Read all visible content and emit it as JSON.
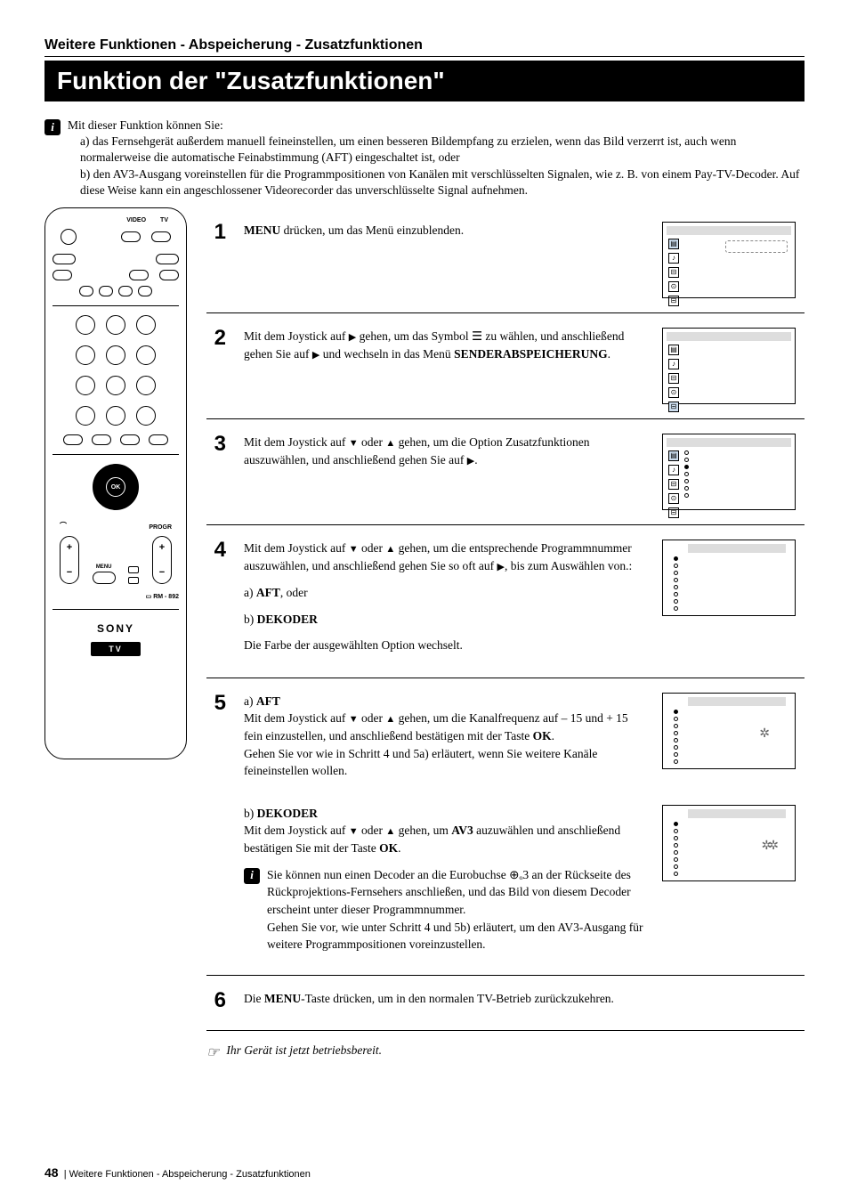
{
  "breadcrumb": "Weitere Funktionen - Abspeicherung - Zusatzfunktionen",
  "title": "Funktion der \"Zusatzfunktionen\"",
  "intro": {
    "lead": "Mit dieser Funktion können Sie:",
    "a": "a) das Fernsehgerät außerdem manuell feineinstellen, um einen besseren Bildempfang zu erzielen, wenn das Bild verzerrt ist, auch wenn normalerweise die automatische Feinabstimmung (AFT) eingeschaltet ist, oder",
    "b": "b) den AV3-Ausgang voreinstellen für die Programmpositionen von Kanälen mit verschlüsselten Signalen, wie z. B. von einem Pay-TV-Decoder. Auf diese Weise kann ein angeschlossener Videorecorder das unverschlüsselte Signal aufnehmen."
  },
  "remote": {
    "head_video": "VIDEO",
    "head_tv": "TV",
    "ok": "OK",
    "progr": "PROGR",
    "menu": "MENU",
    "model": "RM - 892",
    "brand": "SONY",
    "tv_badge": "TV"
  },
  "steps": [
    {
      "num": "1",
      "paras": [
        "<b>MENU</b> drücken, um das Menü einzublenden."
      ],
      "thumb": "menu1"
    },
    {
      "num": "2",
      "paras": [
        "Mit dem Joystick auf <span class='tri'>▶</span> gehen, um das Symbol ☰ zu wählen, und anschließend gehen Sie auf <span class='tri'>▶</span> und wechseln in das Menü <b>SENDERABSPEICHERUNG</b>."
      ],
      "thumb": "menu2"
    },
    {
      "num": "3",
      "paras": [
        "Mit dem Joystick auf <span class='tri'>▼</span> oder <span class='tri'>▲</span> gehen, um die Option Zusatzfunktionen auszuwählen, und anschließend gehen Sie auf <span class='tri'>▶</span>."
      ],
      "thumb": "menu3"
    },
    {
      "num": "4",
      "paras": [
        "Mit dem Joystick auf <span class='tri'>▼</span> oder <span class='tri'>▲</span> gehen, um die entsprechende Programmnummer auszuwählen, und anschließend gehen Sie so oft auf <span class='tri'>▶</span>,  bis zum Auswählen von.:",
        "a) <b>AFT</b>, oder",
        "b) <b>DEKODER</b>",
        "Die Farbe der ausgewählten Option wechselt."
      ],
      "thumb": "menu4"
    },
    {
      "num": "5",
      "paras": [
        "a) <b>AFT</b><br>Mit dem Joystick auf <span class='tri'>▼</span> oder <span class='tri'>▲</span> gehen, um die Kanalfrequenz auf – 15 und + 15 fein einzustellen, und anschließend bestätigen mit der Taste <b>OK</b>.<br>Gehen Sie vor wie in Schritt 4 und 5a) erläutert, wenn Sie weitere Kanäle feineinstellen wollen."
      ],
      "thumb": "menu5a",
      "extra": {
        "paras": [
          "b) <b>DEKODER</b><br>Mit dem Joystick auf <span class='tri'>▼</span> oder <span class='tri'>▲</span> gehen, um <b>AV3</b> auzuwählen und anschließend bestätigen Sie mit der Taste <b>OK</b>."
        ],
        "info": "Sie können nun einen Decoder an die Eurobuchse ⊕ₒ3 an der Rückseite des Rückprojektions-Fernsehers anschließen, und das Bild von diesem Decoder erscheint unter dieser Programmnummer.<br>Gehen Sie vor, wie unter Schritt 4 und  5b) erläutert, um den AV3-Ausgang für weitere Programmpositionen voreinzustellen.",
        "thumb": "menu5b"
      }
    },
    {
      "num": "6",
      "paras": [
        "Die <b>MENU</b>-Taste drücken, um in den normalen TV-Betrieb zurückzukehren."
      ],
      "wide": true
    }
  ],
  "closing": "Ihr Gerät ist jetzt betriebsbereit.",
  "footer": {
    "page": "48",
    "text": "Weitere Funktionen - Abspeicherung - Zusatzfunktionen"
  },
  "colors": {
    "black": "#000000",
    "white": "#ffffff",
    "menu_highlight": "#cde",
    "grey": "#d9d9d9"
  }
}
